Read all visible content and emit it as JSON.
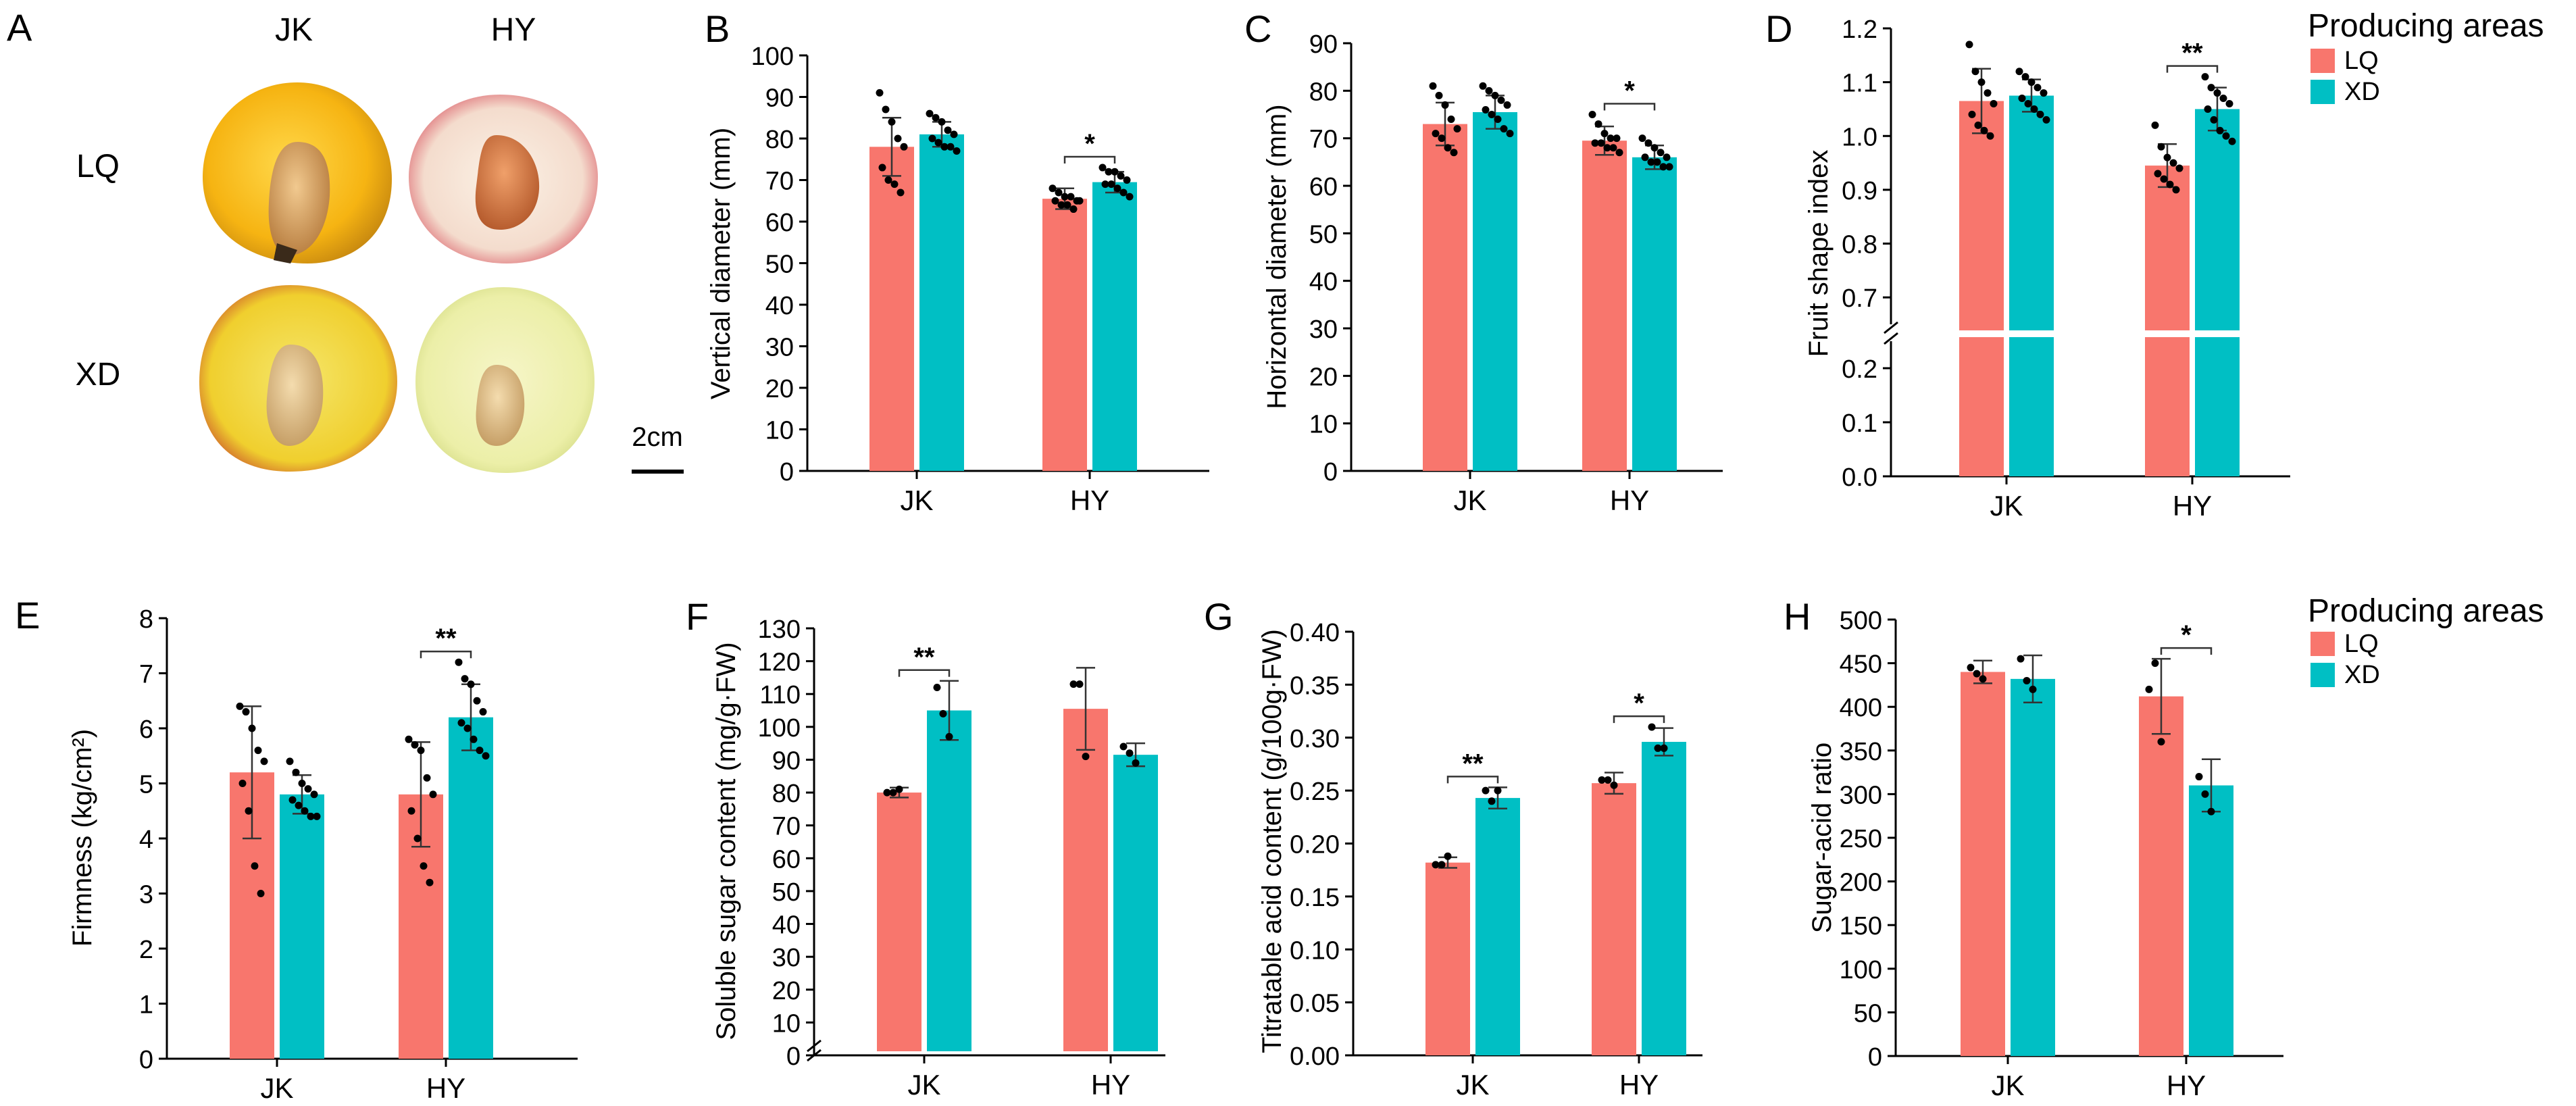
{
  "colors": {
    "LQ": "#F8766D",
    "XD": "#00BFC4",
    "axis": "#000000"
  },
  "legend": {
    "title": "Producing areas",
    "items": [
      {
        "key": "LQ",
        "label": "LQ"
      },
      {
        "key": "XD",
        "label": "XD"
      }
    ]
  },
  "panel_a": {
    "letter": "A",
    "col_labels": [
      "JK",
      "HY"
    ],
    "row_labels": [
      "LQ",
      "XD"
    ],
    "scale_label": "2cm"
  },
  "chart_data": [
    {
      "id": "B",
      "type": "bar",
      "ylabel": "Vertical diameter (mm)",
      "ylim": [
        0,
        100
      ],
      "yticks": [
        0,
        10,
        20,
        30,
        40,
        50,
        60,
        70,
        80,
        90,
        100
      ],
      "categories": [
        "JK",
        "HY"
      ],
      "series": [
        {
          "name": "LQ",
          "values": [
            78,
            65.5
          ],
          "errors": [
            7,
            2.5
          ]
        },
        {
          "name": "XD",
          "values": [
            81,
            69.5
          ],
          "errors": [
            3,
            2.5
          ]
        }
      ],
      "points": [
        [
          [
            91,
            87,
            84,
            80,
            78,
            73,
            70,
            69,
            67
          ],
          [
            86,
            85,
            84,
            82,
            81,
            80,
            79,
            78,
            78,
            77
          ]
        ],
        [
          [
            68,
            67,
            66,
            66,
            65,
            65,
            64,
            64,
            63,
            65
          ],
          [
            73,
            72,
            72,
            71,
            70,
            69,
            69,
            68,
            67,
            66
          ]
        ]
      ],
      "significance": [
        {
          "category": "HY",
          "label": "*"
        }
      ]
    },
    {
      "id": "C",
      "type": "bar",
      "ylabel": "Horizontal diameter (mm)",
      "ylim": [
        0,
        90
      ],
      "yticks": [
        0,
        10,
        20,
        30,
        40,
        50,
        60,
        70,
        80,
        90
      ],
      "categories": [
        "JK",
        "HY"
      ],
      "series": [
        {
          "name": "LQ",
          "values": [
            73,
            69.5
          ],
          "errors": [
            4.5,
            3
          ]
        },
        {
          "name": "XD",
          "values": [
            75.5,
            66
          ],
          "errors": [
            3.5,
            2.5
          ]
        }
      ],
      "points": [
        [
          [
            81,
            79,
            77,
            74,
            72,
            71,
            70,
            68,
            67
          ],
          [
            81,
            80,
            79,
            78,
            77,
            76,
            75,
            74,
            72,
            71
          ]
        ],
        [
          [
            75,
            73,
            71,
            70,
            70,
            69,
            69,
            68,
            68,
            67
          ],
          [
            70,
            69,
            68,
            67,
            66,
            66,
            65,
            65,
            64,
            64
          ]
        ]
      ],
      "significance": [
        {
          "category": "HY",
          "label": "*"
        }
      ]
    },
    {
      "id": "D",
      "type": "bar",
      "ylabel": "Fruit shape index",
      "axis_break": true,
      "lower_ylim": [
        0,
        0.25
      ],
      "lower_yticks": [
        "0.0",
        "0.1",
        "0.2"
      ],
      "upper_ylim": [
        0.65,
        1.2
      ],
      "upper_yticks": [
        "0.7",
        "0.8",
        "0.9",
        "1.0",
        "1.1",
        "1.2"
      ],
      "categories": [
        "JK",
        "HY"
      ],
      "series": [
        {
          "name": "LQ",
          "values": [
            1.065,
            0.945
          ],
          "errors": [
            0.06,
            0.04
          ]
        },
        {
          "name": "XD",
          "values": [
            1.075,
            1.05
          ],
          "errors": [
            0.03,
            0.04
          ]
        }
      ],
      "points": [
        [
          [
            1.17,
            1.12,
            1.1,
            1.08,
            1.06,
            1.04,
            1.02,
            1.01,
            1.0
          ],
          [
            1.12,
            1.11,
            1.1,
            1.09,
            1.08,
            1.07,
            1.06,
            1.05,
            1.04,
            1.03
          ]
        ],
        [
          [
            1.02,
            0.98,
            0.96,
            0.95,
            0.94,
            0.93,
            0.92,
            0.91,
            0.9
          ],
          [
            1.11,
            1.09,
            1.08,
            1.07,
            1.06,
            1.05,
            1.03,
            1.01,
            1.0,
            0.99
          ]
        ]
      ],
      "significance": [
        {
          "category": "HY",
          "label": "**"
        }
      ]
    },
    {
      "id": "E",
      "type": "bar",
      "ylabel": "Firmness  (kg/cm²)",
      "ylim": [
        0,
        8
      ],
      "yticks": [
        0,
        1,
        2,
        3,
        4,
        5,
        6,
        7,
        8
      ],
      "categories": [
        "JK",
        "HY"
      ],
      "series": [
        {
          "name": "LQ",
          "values": [
            5.2,
            4.8
          ],
          "errors": [
            1.2,
            0.95
          ]
        },
        {
          "name": "XD",
          "values": [
            4.8,
            6.2
          ],
          "errors": [
            0.35,
            0.6
          ]
        }
      ],
      "points": [
        [
          [
            6.4,
            6.3,
            6.0,
            5.6,
            5.4,
            5.0,
            4.5,
            3.5,
            3.0
          ],
          [
            5.4,
            5.2,
            5.0,
            4.9,
            4.8,
            4.7,
            4.6,
            4.5,
            4.4,
            4.4
          ]
        ],
        [
          [
            5.8,
            5.7,
            5.6,
            5.1,
            4.8,
            4.5,
            4.0,
            3.5,
            3.2
          ],
          [
            7.2,
            6.9,
            6.8,
            6.5,
            6.3,
            6.1,
            6.0,
            5.8,
            5.6,
            5.5
          ]
        ]
      ],
      "significance": [
        {
          "category": "HY",
          "label": "**"
        }
      ]
    },
    {
      "id": "F",
      "type": "bar",
      "ylabel": "Soluble sugar content (mg/g·FW)",
      "ylim": [
        0,
        130
      ],
      "yticks": [
        0,
        10,
        20,
        30,
        40,
        50,
        60,
        70,
        80,
        90,
        100,
        110,
        120,
        130
      ],
      "axis_break_marker": true,
      "categories": [
        "JK",
        "HY"
      ],
      "series": [
        {
          "name": "LQ",
          "values": [
            80,
            105.5
          ],
          "errors": [
            1.5,
            12.5
          ]
        },
        {
          "name": "XD",
          "values": [
            105,
            91.5
          ],
          "errors": [
            9,
            3.5
          ]
        }
      ],
      "points": [
        [
          [
            80,
            80,
            81
          ],
          [
            112,
            104,
            97
          ]
        ],
        [
          [
            113,
            113,
            91
          ],
          [
            94,
            92,
            89
          ]
        ]
      ],
      "significance": [
        {
          "category": "JK",
          "label": "**"
        }
      ]
    },
    {
      "id": "G",
      "type": "bar",
      "ylabel": "Titratable acid content (g/100g·FW)",
      "ylim": [
        0,
        0.4
      ],
      "yticks": [
        "0.00",
        "0.05",
        "0.10",
        "0.15",
        "0.20",
        "0.25",
        "0.30",
        "0.35",
        "0.40"
      ],
      "categories": [
        "JK",
        "HY"
      ],
      "series": [
        {
          "name": "LQ",
          "values": [
            0.182,
            0.257
          ],
          "errors": [
            0.005,
            0.01
          ]
        },
        {
          "name": "XD",
          "values": [
            0.243,
            0.296
          ],
          "errors": [
            0.01,
            0.013
          ]
        }
      ],
      "points": [
        [
          [
            0.18,
            0.18,
            0.188
          ],
          [
            0.25,
            0.24,
            0.25
          ]
        ],
        [
          [
            0.26,
            0.26,
            0.255
          ],
          [
            0.31,
            0.29,
            0.29
          ]
        ]
      ],
      "significance": [
        {
          "category": "JK",
          "label": "**"
        },
        {
          "category": "HY",
          "label": "*"
        }
      ]
    },
    {
      "id": "H",
      "type": "bar",
      "ylabel": "Sugar-acid ratio",
      "ylim": [
        0,
        500
      ],
      "yticks": [
        0,
        50,
        100,
        150,
        200,
        250,
        300,
        350,
        400,
        450,
        500
      ],
      "categories": [
        "JK",
        "HY"
      ],
      "series": [
        {
          "name": "LQ",
          "values": [
            440,
            412
          ],
          "errors": [
            13,
            43
          ]
        },
        {
          "name": "XD",
          "values": [
            432,
            310
          ],
          "errors": [
            27,
            30
          ]
        }
      ],
      "points": [
        [
          [
            445,
            438,
            432
          ],
          [
            455,
            430,
            420
          ]
        ],
        [
          [
            420,
            450,
            360
          ],
          [
            320,
            300,
            280
          ]
        ]
      ],
      "significance": [
        {
          "category": "HY",
          "label": "*"
        }
      ]
    }
  ]
}
